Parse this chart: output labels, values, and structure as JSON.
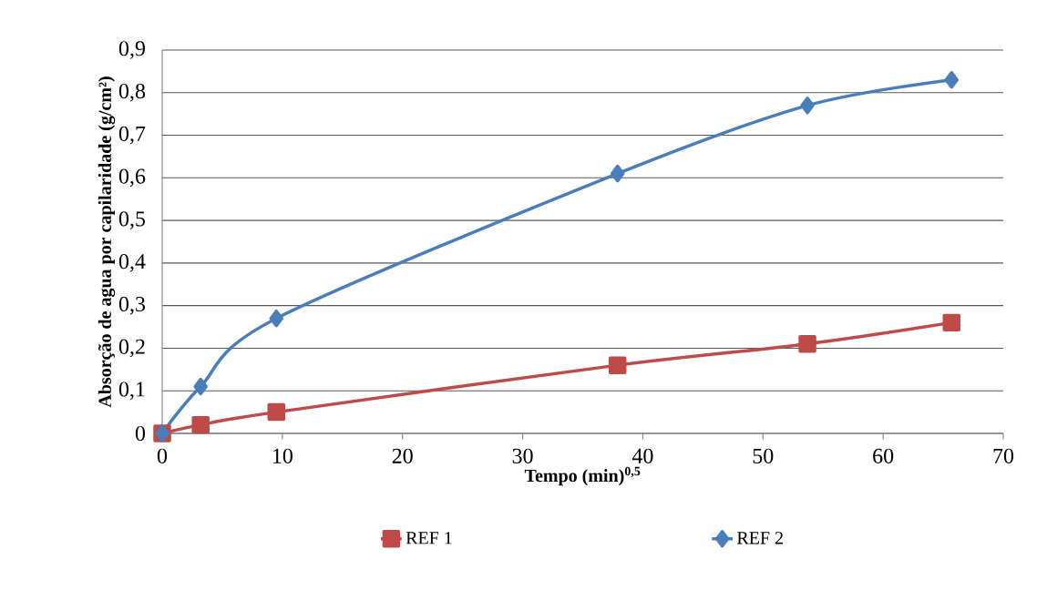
{
  "chart_data": {
    "type": "line",
    "xlabel": "Tempo (min)$^{0,5}$",
    "ylabel": "Absorção de agua por capilaridade (g/cm²)",
    "xlim": [
      0,
      70
    ],
    "xticks": [
      0,
      10,
      20,
      30,
      40,
      50,
      60,
      70
    ],
    "ylim": [
      0,
      0.9
    ],
    "yticks": [
      {
        "value": 0,
        "label": "0"
      },
      {
        "value": 0.1,
        "label": "0,1"
      },
      {
        "value": 0.2,
        "label": "0,2"
      },
      {
        "value": 0.3,
        "label": "0,3"
      },
      {
        "value": 0.4,
        "label": "0,4"
      },
      {
        "value": 0.5,
        "label": "0,5"
      },
      {
        "value": 0.6,
        "label": "0,6"
      },
      {
        "value": 0.7,
        "label": "0,7"
      },
      {
        "value": 0.8,
        "label": "0,8"
      },
      {
        "value": 0.9,
        "label": "0,9"
      }
    ],
    "grid": "y",
    "legend": "bottom",
    "line_style": "solid",
    "series": [
      {
        "name": "REF 1",
        "color": "#be4b48",
        "marker": "square",
        "x": [
          0,
          3.2,
          9.5,
          37.9,
          53.7,
          65.7
        ],
        "values": [
          0,
          0.02,
          0.05,
          0.16,
          0.21,
          0.26
        ]
      },
      {
        "name": "REF 2",
        "color": "#4a7ebb",
        "marker": "diamond",
        "x": [
          0,
          3.2,
          9.5,
          37.9,
          53.7,
          65.7
        ],
        "values": [
          0,
          0.11,
          0.27,
          0.61,
          0.77,
          0.83
        ]
      }
    ]
  }
}
